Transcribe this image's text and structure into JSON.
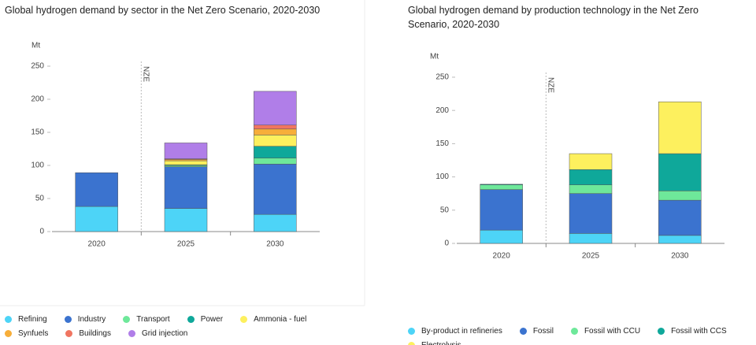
{
  "chart_data": [
    {
      "type": "bar",
      "stacked": true,
      "title": "Global hydrogen demand by sector in the Net Zero Scenario, 2020-2030",
      "y_label": "Mt",
      "annotation": "NZE",
      "categories": [
        "2020",
        "2025",
        "2030"
      ],
      "ylim": [
        0,
        250
      ],
      "yticks": [
        0,
        50,
        100,
        150,
        200,
        250
      ],
      "series": [
        {
          "name": "Refining",
          "color": "#4dd4f7",
          "values": [
            38,
            35,
            26
          ]
        },
        {
          "name": "Industry",
          "color": "#3b73cf",
          "values": [
            51,
            63,
            76
          ]
        },
        {
          "name": "Transport",
          "color": "#6ee89a",
          "values": [
            0,
            2,
            9
          ]
        },
        {
          "name": "Power",
          "color": "#0fa89a",
          "values": [
            0,
            1,
            18
          ]
        },
        {
          "name": "Ammonia - fuel",
          "color": "#fdf05e",
          "values": [
            0,
            6,
            17
          ]
        },
        {
          "name": "Synfuels",
          "color": "#f7ae3a",
          "values": [
            0,
            2,
            9
          ]
        },
        {
          "name": "Buildings",
          "color": "#f07561",
          "values": [
            0,
            1,
            6
          ]
        },
        {
          "name": "Grid injection",
          "color": "#b07ee8",
          "values": [
            0,
            24,
            51
          ]
        }
      ]
    },
    {
      "type": "bar",
      "stacked": true,
      "title": "Global hydrogen demand by production technology in the Net Zero Scenario, 2020-2030",
      "y_label": "Mt",
      "annotation": "NZE",
      "categories": [
        "2020",
        "2025",
        "2030"
      ],
      "ylim": [
        0,
        250
      ],
      "yticks": [
        0,
        50,
        100,
        150,
        200,
        250
      ],
      "series": [
        {
          "name": "By-product in refineries",
          "color": "#4dd4f7",
          "values": [
            20,
            15,
            12
          ]
        },
        {
          "name": "Fossil",
          "color": "#3b73cf",
          "values": [
            61,
            60,
            53
          ]
        },
        {
          "name": "Fossil with CCU",
          "color": "#6ee89a",
          "values": [
            7,
            13,
            14
          ]
        },
        {
          "name": "Fossil with CCS",
          "color": "#0fa89a",
          "values": [
            1,
            23,
            56
          ]
        },
        {
          "name": "Electrolysis",
          "color": "#fdf05e",
          "values": [
            0,
            24,
            78
          ]
        }
      ]
    }
  ]
}
